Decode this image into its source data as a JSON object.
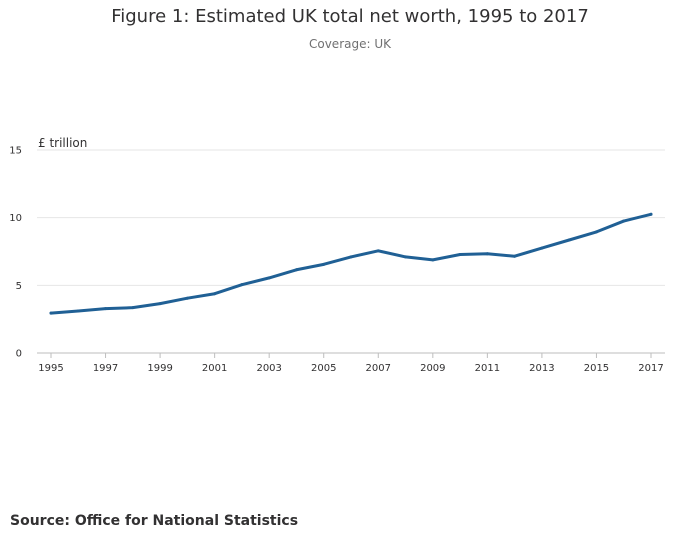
{
  "title": "Figure 1: Estimated UK total net worth, 1995 to 2017",
  "subtitle": "Coverage: UK",
  "source": "Source: Office for National Statistics",
  "colors": {
    "line": "#206095",
    "grid": "#e6e6e6",
    "axis": "#bebebe"
  },
  "chart_data": {
    "type": "line",
    "title": "Figure 1: Estimated UK total net worth, 1995 to 2017",
    "subtitle": "Coverage: UK",
    "xlabel": "",
    "ylabel": "£ trillion",
    "xlim": [
      1995,
      2017
    ],
    "ylim": [
      0,
      15
    ],
    "yticks": [
      0,
      5,
      10,
      15
    ],
    "xticks": [
      1995,
      1997,
      1999,
      2001,
      2003,
      2005,
      2007,
      2009,
      2011,
      2013,
      2015,
      2017
    ],
    "grid": true,
    "series": [
      {
        "name": "UK total net worth",
        "x": [
          1995,
          1996,
          1997,
          1998,
          1999,
          2000,
          2001,
          2002,
          2003,
          2004,
          2005,
          2006,
          2007,
          2008,
          2009,
          2010,
          2011,
          2012,
          2013,
          2014,
          2015,
          2016,
          2017
        ],
        "values": [
          2.95,
          3.1,
          3.28,
          3.35,
          3.65,
          4.05,
          4.38,
          5.05,
          5.55,
          6.15,
          6.55,
          7.1,
          7.55,
          7.1,
          6.88,
          7.28,
          7.33,
          7.15,
          7.75,
          8.35,
          8.95,
          9.75,
          10.25
        ]
      }
    ]
  }
}
